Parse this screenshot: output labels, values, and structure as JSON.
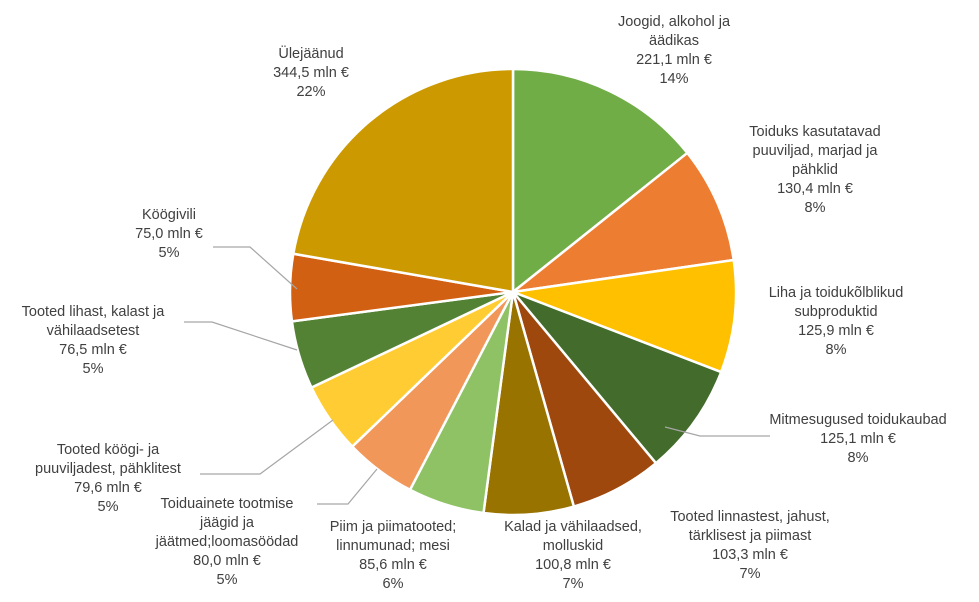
{
  "chart_data": {
    "type": "pie",
    "title": "",
    "unit": "mln €",
    "slices": [
      {
        "name": "Joogid, alkohol ja äädikas",
        "label_lines": [
          "Joogid, alkohol ja",
          "äädikas"
        ],
        "value_label": "221,1 mln €",
        "percent_label": "14%",
        "value": 221.1,
        "color": "#70AD47"
      },
      {
        "name": "Toiduks kasutatavad puuviljad, marjad ja pähklid",
        "label_lines": [
          "Toiduks kasutatavad",
          "puuviljad, marjad ja",
          "pähklid"
        ],
        "value_label": "130,4 mln €",
        "percent_label": "8%",
        "value": 130.4,
        "color": "#ED7D31"
      },
      {
        "name": "Liha ja toidukõlblikud subproduktid",
        "label_lines": [
          "Liha ja toidukõlblikud",
          "subproduktid"
        ],
        "value_label": "125,9 mln €",
        "percent_label": "8%",
        "value": 125.9,
        "color": "#FFC000"
      },
      {
        "name": "Mitmesugused toidukaubad",
        "label_lines": [
          "Mitmesugused toidukaubad"
        ],
        "value_label": "125,1 mln €",
        "percent_label": "8%",
        "value": 125.1,
        "color": "#436B2B"
      },
      {
        "name": "Tooted linnastest, jahust, tärklisest ja piimast",
        "label_lines": [
          "Tooted linnastest, jahust,",
          "tärklisest ja piimast"
        ],
        "value_label": "103,3 mln €",
        "percent_label": "7%",
        "value": 103.3,
        "color": "#9E480E"
      },
      {
        "name": "Kalad ja vähilaadsed, molluskid",
        "label_lines": [
          "Kalad ja vähilaadsed,",
          "molluskid"
        ],
        "value_label": "100,8 mln €",
        "percent_label": "7%",
        "value": 100.8,
        "color": "#997300"
      },
      {
        "name": "Piim ja piimatooted; linnumunad; mesi",
        "label_lines": [
          "Piim ja piimatooted;",
          "linnumunad; mesi"
        ],
        "value_label": "85,6 mln €",
        "percent_label": "6%",
        "value": 85.6,
        "color": "#8FC265"
      },
      {
        "name": "Toiduainete tootmise jäägid ja jäätmed;loomasöödad",
        "label_lines": [
          "Toiduainete tootmise",
          "jäägid ja",
          "jäätmed;loomasöödad"
        ],
        "value_label": "80,0 mln €",
        "percent_label": "5%",
        "value": 80.0,
        "color": "#F1975A"
      },
      {
        "name": "Tooted köögi- ja puuviljadest, pähklitest",
        "label_lines": [
          "Tooted köögi- ja",
          "puuviljadest, pähklitest"
        ],
        "value_label": "79,6 mln €",
        "percent_label": "5%",
        "value": 79.6,
        "color": "#FFCD33"
      },
      {
        "name": "Tooted lihast, kalast ja vähilaadsetest",
        "label_lines": [
          "Tooted lihast, kalast ja",
          "vähilaadsetest"
        ],
        "value_label": "76,5 mln €",
        "percent_label": "5%",
        "value": 76.5,
        "color": "#548235"
      },
      {
        "name": "Köögivili",
        "label_lines": [
          "Köögivili"
        ],
        "value_label": "75,0 mln €",
        "percent_label": "5%",
        "value": 75.0,
        "color": "#D26012"
      },
      {
        "name": "Ülejäänud",
        "label_lines": [
          "Ülejäänud"
        ],
        "value_label": "344,5 mln €",
        "percent_label": "22%",
        "value": 344.5,
        "color": "#CC9A00"
      }
    ]
  }
}
